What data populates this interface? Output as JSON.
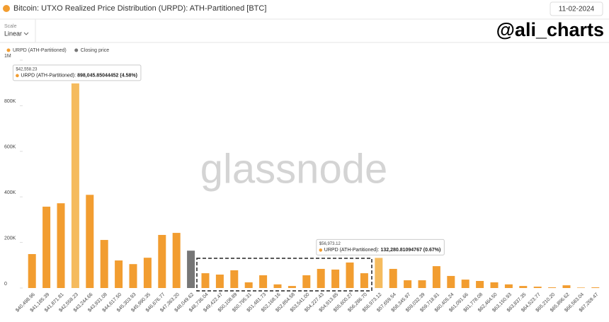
{
  "header": {
    "title": "Bitcoin: UTXO Realized Price Distribution (URPD): ATH-Partitioned [BTC]",
    "date": "11-02-2024",
    "scale_label": "Scale",
    "scale_value": "Linear",
    "handle": "@ali_charts",
    "watermark": "glassnode"
  },
  "chart_data": {
    "type": "bar",
    "categories": [
      "$40,498.96",
      "$41,185.39",
      "$41,871.81",
      "$42,558.23",
      "$43,244.66",
      "$43,931.08",
      "$44,617.50",
      "$45,303.93",
      "$45,990.35",
      "$46,676.77",
      "$47,363.20",
      "$48,049.62",
      "$48,736.04",
      "$49,422.47",
      "$50,108.89",
      "$50,795.31",
      "$51,481.73",
      "$52,168.16",
      "$52,854.58",
      "$53,541.00",
      "$54,227.43",
      "$54,913.85",
      "$55,600.27",
      "$56,286.70",
      "$56,973.12",
      "$57,659.54",
      "$58,345.97",
      "$59,032.39",
      "$59,718.81",
      "$60,405.24",
      "$61,091.66",
      "$61,778.08",
      "$62,464.50",
      "$63,150.93",
      "$63,837.35",
      "$64,523.77",
      "$65,210.20",
      "$65,896.62",
      "$66,583.04",
      "$67,269.47"
    ],
    "series": [
      {
        "name": "URPD (ATH-Partitioned)",
        "color": "#f29d30",
        "values": [
          149000,
          357000,
          372000,
          898045.85044452,
          409000,
          211000,
          121000,
          105000,
          133000,
          233000,
          242000,
          null,
          65000,
          59000,
          78000,
          25000,
          56000,
          16000,
          9000,
          56000,
          84000,
          81000,
          112000,
          65000,
          132280.81094767,
          84000,
          34000,
          34000,
          96000,
          53000,
          37000,
          31000,
          25000,
          16000,
          9000,
          6000,
          3000,
          12000,
          2000,
          3000
        ]
      },
      {
        "name": "Closing price",
        "color": "#767676",
        "values": [
          null,
          null,
          null,
          null,
          null,
          null,
          null,
          null,
          null,
          null,
          null,
          164000,
          null,
          null,
          null,
          null,
          null,
          null,
          null,
          null,
          null,
          null,
          null,
          null,
          null,
          null,
          null,
          null,
          null,
          null,
          null,
          null,
          null,
          null,
          null,
          null,
          null,
          null,
          null,
          null
        ]
      }
    ],
    "highlight_color": "#f5bb5e",
    "ylim": [
      0,
      1000000
    ],
    "yticks": [
      0,
      {
        "value": 200000,
        "label": "200K"
      },
      {
        "value": 400000,
        "label": "400K"
      },
      {
        "value": 600000,
        "label": "600K"
      },
      {
        "value": 800000,
        "label": "800K"
      },
      {
        "value": 1000000,
        "label": "1M"
      }
    ],
    "annotations": [
      {
        "x": "$42,558.23",
        "text": "URPD (ATH-Partitioned): ",
        "value": "898,045.85044452 (4.58%)"
      },
      {
        "x": "$56,973.12",
        "text": "URPD (ATH-Partitioned): ",
        "value": "132,280.81094767 (0.67%)"
      }
    ]
  }
}
